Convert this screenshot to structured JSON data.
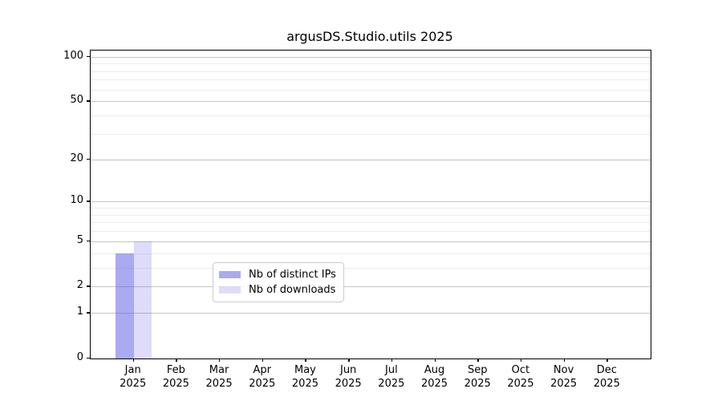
{
  "chart_data": {
    "type": "bar",
    "title": "argusDS.Studio.utils 2025",
    "categories": [
      "Jan",
      "Feb",
      "Mar",
      "Apr",
      "May",
      "Jun",
      "Jul",
      "Aug",
      "Sep",
      "Oct",
      "Nov",
      "Dec"
    ],
    "category_year": "2025",
    "series": [
      {
        "key": "distinct-ips",
        "name": "Nb of distinct IPs",
        "color": "rgba(85,85,230,0.5)",
        "values": [
          4,
          0,
          0,
          0,
          0,
          0,
          0,
          0,
          0,
          0,
          0,
          0
        ]
      },
      {
        "key": "downloads",
        "name": "Nb of downloads",
        "color": "rgba(85,85,230,0.2)",
        "values": [
          5,
          0,
          0,
          0,
          0,
          0,
          0,
          0,
          0,
          0,
          0,
          0
        ]
      }
    ],
    "yscale": "log1p",
    "ylim": [
      0,
      110
    ],
    "y_major_ticks": [
      0,
      1,
      2,
      5,
      10,
      20,
      50,
      100
    ],
    "y_minor_ticks": [
      3,
      4,
      6,
      7,
      8,
      9,
      30,
      40,
      60,
      70,
      80,
      90
    ],
    "grid": {
      "major_color": "#c6c6c6",
      "minor_color": "#ebebeb"
    },
    "legend": {
      "position": "lower center",
      "entries": [
        "Nb of distinct IPs",
        "Nb of downloads"
      ]
    },
    "axes_color": "#000000",
    "background_color": "#ffffff"
  }
}
